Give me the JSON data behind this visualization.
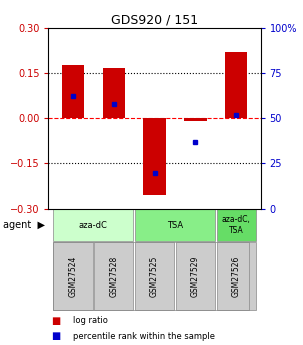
{
  "title": "GDS920 / 151",
  "samples": [
    "GSM27524",
    "GSM27528",
    "GSM27525",
    "GSM27529",
    "GSM27526"
  ],
  "log_ratios": [
    0.175,
    0.165,
    -0.255,
    -0.01,
    0.22
  ],
  "percentile_ranks": [
    62,
    58,
    20,
    37,
    52
  ],
  "bar_color": "#cc0000",
  "dot_color": "#0000cc",
  "ylim_left": [
    -0.3,
    0.3
  ],
  "ylim_right": [
    0,
    100
  ],
  "yticks_left": [
    -0.3,
    -0.15,
    0,
    0.15,
    0.3
  ],
  "yticks_right": [
    0,
    25,
    50,
    75,
    100
  ],
  "hlines": [
    -0.15,
    0,
    0.15
  ],
  "hline_styles": [
    "dotted",
    "dashed",
    "dotted"
  ],
  "hline_colors": [
    "black",
    "red",
    "black"
  ],
  "agent_groups": [
    {
      "label": "aza-dC",
      "start": 0,
      "end": 1,
      "color": "#ccffcc"
    },
    {
      "label": "TSA",
      "start": 2,
      "end": 3,
      "color": "#88ee88"
    },
    {
      "label": "aza-dC,\nTSA",
      "start": 4,
      "end": 4,
      "color": "#66dd66"
    }
  ],
  "legend_items": [
    {
      "color": "#cc0000",
      "label": "log ratio"
    },
    {
      "color": "#0000cc",
      "label": "percentile rank within the sample"
    }
  ],
  "bar_width": 0.55,
  "left_tick_color": "#cc0000",
  "right_tick_color": "#0000cc",
  "sample_box_color": "#cccccc",
  "sample_box_edge": "#888888"
}
